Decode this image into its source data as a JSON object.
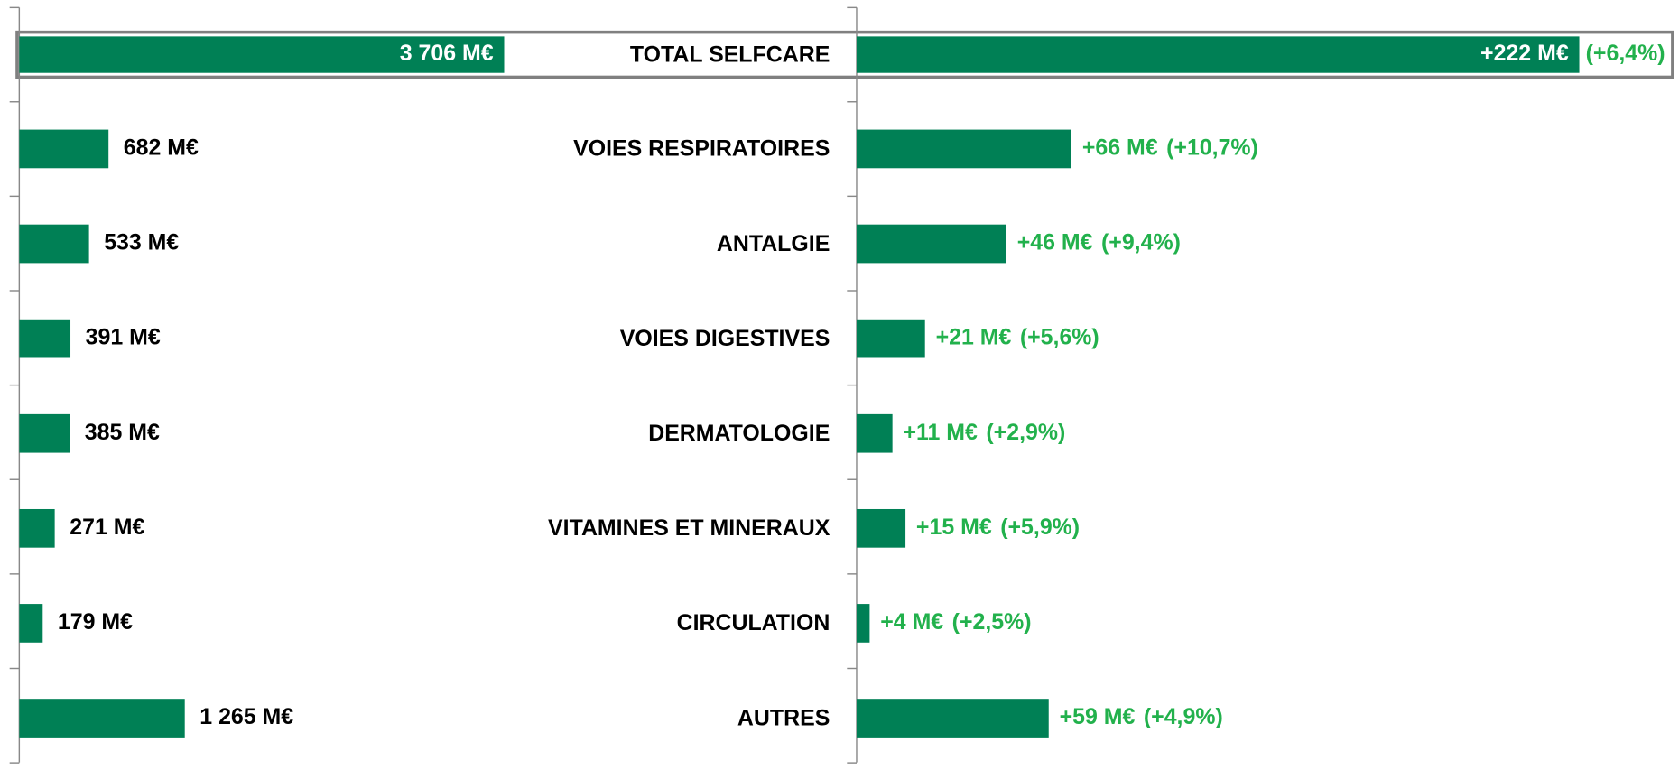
{
  "chart_data": [
    {
      "type": "bar",
      "orientation": "horizontal",
      "color": "#008055",
      "label_color": "#000000",
      "xlim": [
        0,
        6400
      ],
      "values": [
        3706,
        682,
        533,
        391,
        385,
        271,
        179,
        1265
      ],
      "value_labels": [
        "3 706 M€",
        "682 M€",
        "533 M€",
        "391 M€",
        "385 M€",
        "271 M€",
        "179 M€",
        "1 265 M€"
      ]
    },
    {
      "type": "bar",
      "orientation": "horizontal",
      "color": "#008055",
      "label_color": "#22b14c",
      "xlim": [
        0,
        250
      ],
      "categories": [
        "TOTAL SELFCARE",
        "VOIES RESPIRATOIRES",
        "ANTALGIE",
        "VOIES DIGESTIVES",
        "DERMATOLOGIE",
        "VITAMINES ET MINERAUX",
        "CIRCULATION",
        "AUTRES"
      ],
      "values": [
        222,
        66,
        46,
        21,
        11,
        15,
        4,
        59
      ],
      "value_labels": [
        "+222 M€",
        "+66 M€",
        "+46 M€",
        "+21 M€",
        "+11 M€",
        "+15 M€",
        "+4 M€",
        "+59 M€"
      ],
      "pct_values": [
        6.4,
        10.7,
        9.4,
        5.6,
        2.9,
        5.9,
        2.5,
        4.9
      ],
      "pct_labels": [
        "(+6,4%)",
        "(+10,7%)",
        "(+9,4%)",
        "(+5,6%)",
        "(+2,9%)",
        "(+5,9%)",
        "(+2,5%)",
        "(+4,9%)"
      ]
    }
  ]
}
